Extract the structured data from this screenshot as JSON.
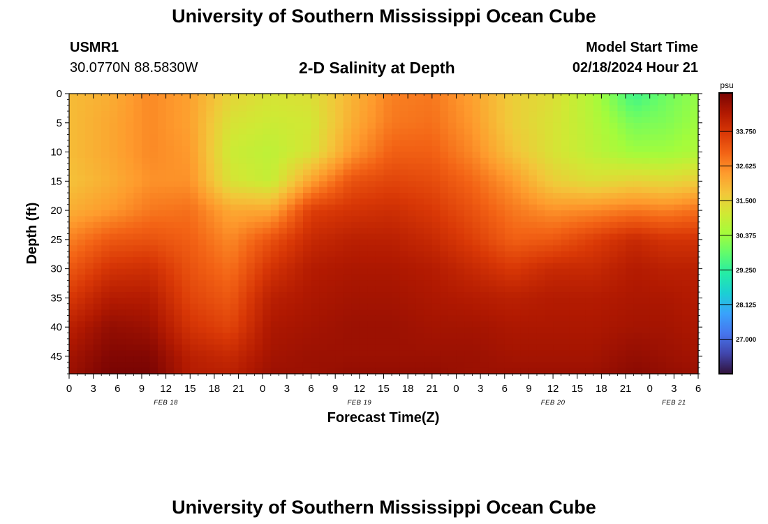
{
  "header": {
    "title": "University of Southern Mississippi Ocean Cube",
    "station_id": "USMR1",
    "coordinates": "30.0770N  88.5830W",
    "subtitle": "2-D Salinity at Depth",
    "model_start_label": "Model Start Time",
    "model_start_value": "02/18/2024 Hour 21"
  },
  "footer": {
    "title": "University of Southern Mississippi Ocean Cube"
  },
  "chart_data": {
    "type": "heatmap",
    "title": "2-D Salinity at Depth",
    "xlabel": "Forecast Time(Z)",
    "ylabel": "Depth (ft)",
    "x_unit": "forecast hour",
    "xlim": [
      0,
      78
    ],
    "ylim": [
      0,
      48
    ],
    "y_inverted": true,
    "x_tick_labels": [
      "0",
      "3",
      "6",
      "9",
      "12",
      "15",
      "18",
      "21",
      "0",
      "3",
      "6",
      "9",
      "12",
      "15",
      "18",
      "21",
      "0",
      "3",
      "6",
      "9",
      "12",
      "15",
      "18",
      "21",
      "0",
      "3",
      "6"
    ],
    "y_ticks": [
      0,
      5,
      10,
      15,
      20,
      25,
      30,
      35,
      40,
      45
    ],
    "date_labels": [
      {
        "label": "FEB 18",
        "hour": 12
      },
      {
        "label": "FEB 19",
        "hour": 36
      },
      {
        "label": "FEB 20",
        "hour": 60
      },
      {
        "label": "FEB 21",
        "hour": 75
      }
    ],
    "colorbar": {
      "unit": "psu",
      "range": [
        25.875,
        35.0
      ],
      "tick_values": [
        27.0,
        28.125,
        29.25,
        30.375,
        31.5,
        32.625,
        33.75
      ],
      "tick_labels": [
        "27.000",
        "28.125",
        "29.250",
        "30.375",
        "31.500",
        "32.625",
        "33.750"
      ],
      "colormap": [
        "#30123b",
        "#4145ab",
        "#4675ed",
        "#39a2fc",
        "#1bcfd4",
        "#24eca6",
        "#61fc6c",
        "#a4fc3b",
        "#d1e834",
        "#f3c63a",
        "#fe9b2d",
        "#f36315",
        "#d93806",
        "#b11901",
        "#7a0403"
      ]
    },
    "profile_hours": [
      0,
      5,
      10,
      15,
      20,
      25,
      30,
      35,
      40,
      45,
      50,
      55,
      60,
      65,
      70,
      74,
      78
    ],
    "profile_depths_ft": [
      0,
      5,
      10,
      15,
      20,
      25,
      30,
      35,
      40,
      45,
      48
    ],
    "salinity_psu": [
      [
        31.9,
        31.9,
        31.9,
        31.8,
        32.1,
        32.7,
        33.2,
        33.7,
        34.2,
        34.5,
        34.6
      ],
      [
        32.1,
        32.2,
        32.2,
        32.1,
        32.4,
        33.2,
        33.8,
        34.3,
        34.7,
        34.9,
        35.0
      ],
      [
        32.6,
        32.6,
        32.6,
        32.5,
        32.8,
        33.3,
        33.9,
        34.3,
        34.6,
        34.9,
        35.0
      ],
      [
        32.3,
        32.3,
        32.4,
        32.5,
        32.9,
        33.1,
        33.3,
        33.5,
        33.8,
        34.2,
        34.3
      ],
      [
        31.5,
        31.2,
        31.0,
        31.2,
        32.2,
        32.6,
        32.9,
        33.2,
        33.5,
        34.0,
        34.2
      ],
      [
        31.2,
        31.0,
        30.8,
        30.9,
        32.2,
        33.3,
        33.8,
        34.2,
        34.4,
        34.5,
        34.6
      ],
      [
        31.3,
        31.1,
        31.2,
        32.3,
        33.6,
        34.0,
        34.3,
        34.4,
        34.5,
        34.6,
        34.6
      ],
      [
        32.0,
        32.1,
        32.4,
        33.3,
        33.8,
        34.2,
        34.4,
        34.5,
        34.6,
        34.6,
        34.7
      ],
      [
        32.7,
        32.8,
        33.1,
        33.5,
        33.9,
        34.2,
        34.4,
        34.5,
        34.6,
        34.6,
        34.7
      ],
      [
        32.8,
        32.9,
        33.1,
        33.4,
        33.7,
        34.0,
        34.3,
        34.4,
        34.5,
        34.6,
        34.7
      ],
      [
        32.3,
        32.4,
        32.6,
        33.0,
        33.3,
        33.6,
        34.0,
        34.3,
        34.5,
        34.6,
        34.6
      ],
      [
        31.6,
        31.6,
        31.8,
        32.4,
        32.8,
        33.1,
        33.7,
        34.2,
        34.4,
        34.5,
        34.6
      ],
      [
        31.3,
        31.2,
        31.2,
        31.6,
        32.5,
        33.2,
        34.0,
        34.3,
        34.4,
        34.5,
        34.6
      ],
      [
        30.6,
        30.7,
        30.8,
        31.3,
        32.6,
        33.6,
        34.0,
        34.3,
        34.4,
        34.5,
        34.6
      ],
      [
        29.4,
        30.0,
        30.4,
        31.5,
        32.8,
        34.0,
        34.3,
        34.4,
        34.5,
        34.7,
        34.8
      ],
      [
        29.9,
        30.1,
        30.4,
        31.4,
        32.7,
        33.8,
        34.2,
        34.4,
        34.5,
        34.6,
        34.7
      ],
      [
        30.3,
        30.4,
        30.6,
        31.6,
        32.9,
        33.8,
        34.2,
        34.3,
        34.4,
        34.5,
        34.6
      ]
    ]
  }
}
